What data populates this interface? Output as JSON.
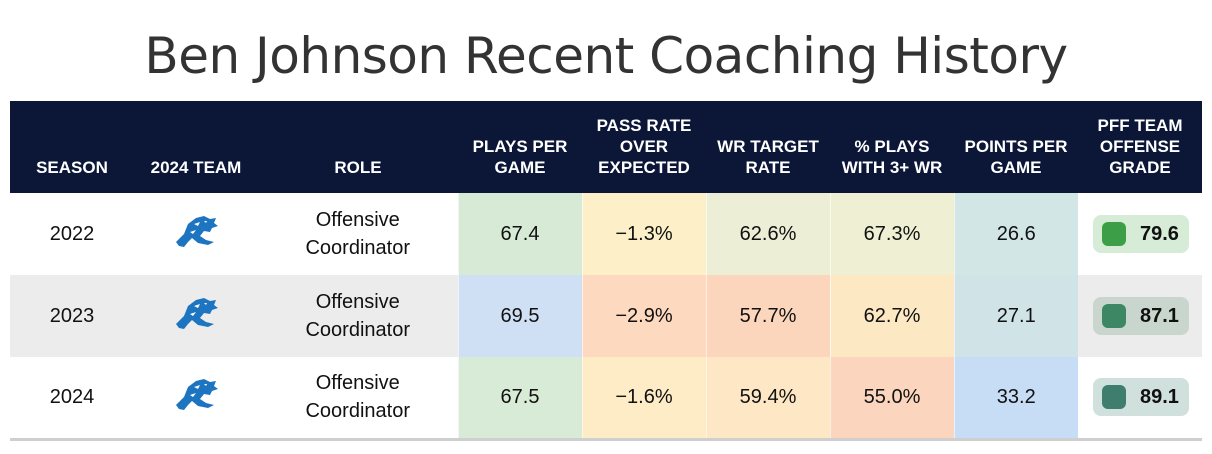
{
  "title": "Ben Johnson Recent Coaching History",
  "headers": {
    "season": "SEASON",
    "team": "2024 TEAM",
    "role": "ROLE",
    "plays_per_game": "PLAYS PER GAME",
    "proe": "PASS RATE OVER EXPECTED",
    "wr_target": "WR TARGET RATE",
    "plays_3wr": "% PLAYS WITH 3+ WR",
    "points": "POINTS PER GAME",
    "grade": "PFF TEAM OFFENSE GRADE"
  },
  "team_icon": "lions-logo-icon",
  "rows": [
    {
      "season": "2022",
      "role": "Offensive Coordinator",
      "plays_per_game": "67.4",
      "proe": "−1.3%",
      "wr_target": "62.6%",
      "plays_3wr": "67.3%",
      "points": "26.6",
      "grade": "79.6",
      "colors": {
        "plays_per_game": "#d7ead6",
        "proe": "#fdf0c8",
        "wr_target": "#ecefd6",
        "plays_3wr": "#eff0d3",
        "points": "#d2e6e6",
        "grade_bg": "#d6ecd6",
        "grade_dot": "#3c9e46"
      }
    },
    {
      "season": "2023",
      "role": "Offensive Coordinator",
      "plays_per_game": "69.5",
      "proe": "−2.9%",
      "wr_target": "57.7%",
      "plays_3wr": "62.7%",
      "points": "27.1",
      "grade": "87.1",
      "colors": {
        "plays_per_game": "#cfe0f4",
        "proe": "#fcd9bf",
        "wr_target": "#fbd6bd",
        "plays_3wr": "#fce8c3",
        "points": "#d0e4e8",
        "grade_bg": "#c8d6cd",
        "grade_dot": "#3e8765"
      }
    },
    {
      "season": "2024",
      "role": "Offensive Coordinator",
      "plays_per_game": "67.5",
      "proe": "−1.6%",
      "wr_target": "59.4%",
      "plays_3wr": "55.0%",
      "points": "33.2",
      "grade": "89.1",
      "colors": {
        "plays_per_game": "#d8ebd6",
        "proe": "#fdecc6",
        "wr_target": "#fde7c5",
        "plays_3wr": "#fbd5bd",
        "points": "#c7dcf5",
        "grade_bg": "#d0e0dc",
        "grade_dot": "#3f7d6e"
      }
    }
  ]
}
